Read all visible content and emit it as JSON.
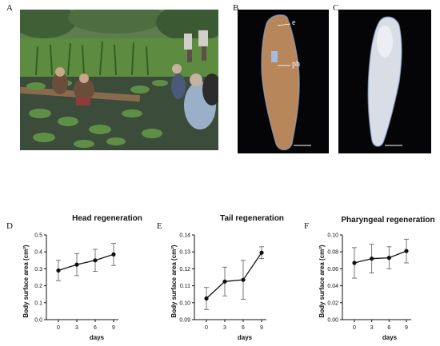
{
  "panels": {
    "a": {
      "label": "A"
    },
    "b": {
      "label": "B",
      "annotations": {
        "eye": "e",
        "pharynx": "ph"
      }
    },
    "c": {
      "label": "C"
    },
    "d": {
      "label": "D"
    },
    "e": {
      "label": "E"
    },
    "f": {
      "label": "F"
    }
  },
  "colors": {
    "photo_bg": "#050507",
    "worm_b": "#b7865a",
    "worm_c": "#d9dde6",
    "line": "#111111"
  },
  "chart_data": [
    {
      "type": "line",
      "title": "Head regeneration",
      "xlabel": "days",
      "ylabel": "Body surface area  (cm²)",
      "x": [
        0,
        3,
        6,
        9
      ],
      "xticks": [
        "0",
        "3",
        "6",
        "9"
      ],
      "ylim": [
        0.0,
        0.5
      ],
      "yticks": [
        "0.0",
        "0.1",
        "0.2",
        "0.3",
        "0.4",
        "0.5"
      ],
      "ytick_values": [
        0.0,
        0.1,
        0.2,
        0.3,
        0.4,
        0.5
      ],
      "series": [
        {
          "values": [
            0.29,
            0.325,
            0.35,
            0.385
          ],
          "err": [
            0.06,
            0.065,
            0.065,
            0.065
          ]
        }
      ]
    },
    {
      "type": "line",
      "title": "Tail regeneration",
      "xlabel": "days",
      "ylabel": "Body surface area  (cm²)",
      "x": [
        0,
        3,
        6,
        9
      ],
      "xticks": [
        "0",
        "3",
        "6",
        "9"
      ],
      "ylim": [
        0.09,
        0.14
      ],
      "yticks": [
        "0.09",
        "0.10",
        "0.11",
        "0.12",
        "0.13",
        "0.14"
      ],
      "ytick_values": [
        0.09,
        0.1,
        0.11,
        0.12,
        0.13,
        0.14
      ],
      "series": [
        {
          "values": [
            0.1025,
            0.1125,
            0.1135,
            0.1295
          ],
          "err": [
            0.0065,
            0.0085,
            0.0115,
            0.0035
          ]
        }
      ]
    },
    {
      "type": "line",
      "title": "Pharyngeal regeneration",
      "xlabel": "days",
      "ylabel": "Body surface area  (cm²)",
      "x": [
        0,
        3,
        6,
        9
      ],
      "xticks": [
        "0",
        "3",
        "6",
        "9"
      ],
      "ylim": [
        0.0,
        0.1
      ],
      "yticks": [
        "0.00",
        "0.02",
        "0.04",
        "0.06",
        "0.08",
        "0.10"
      ],
      "ytick_values": [
        0.0,
        0.02,
        0.04,
        0.06,
        0.08,
        0.1
      ],
      "series": [
        {
          "values": [
            0.067,
            0.072,
            0.073,
            0.081
          ],
          "err": [
            0.018,
            0.017,
            0.013,
            0.014
          ]
        }
      ]
    }
  ]
}
